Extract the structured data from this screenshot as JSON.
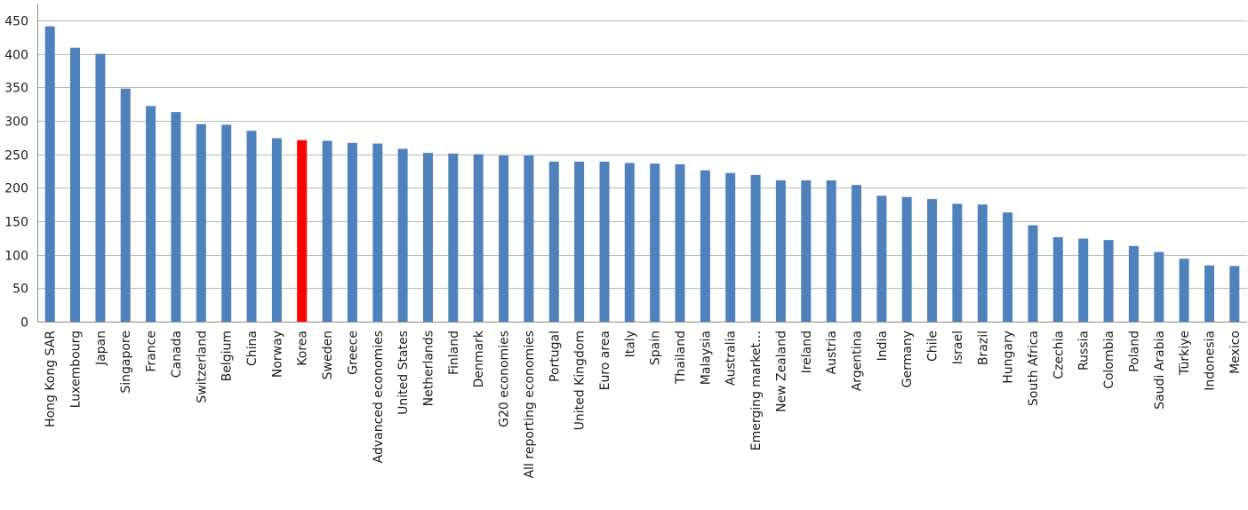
{
  "chart_data": {
    "type": "bar",
    "title": "",
    "xlabel": "",
    "ylabel": "",
    "ylim": [
      0,
      475
    ],
    "yticks": [
      0,
      50,
      100,
      150,
      200,
      250,
      300,
      350,
      400,
      450
    ],
    "yticks_text": [
      "0",
      "50",
      "100",
      "150",
      "200",
      "250",
      "300",
      "350",
      "400",
      "450"
    ],
    "grid": true,
    "legend": "none",
    "bar_color": "#4f81bd",
    "highlight_color": "#ff0000",
    "highlight_category": "Korea",
    "categories": [
      "Hong Kong SAR",
      "Luxembourg",
      "Japan",
      "Singapore",
      "France",
      "Canada",
      "Switzerland",
      "Belgium",
      "China",
      "Norway",
      "Korea",
      "Sweden",
      "Greece",
      "Advanced economies",
      "United States",
      "Netherlands",
      "Finland",
      "Denmark",
      "G20 economies",
      "All reporting economies",
      "Portugal",
      "United Kingdom",
      "Euro area",
      "Italy",
      "Spain",
      "Thailand",
      "Malaysia",
      "Australia",
      "Emerging market…",
      "New Zealand",
      "Ireland",
      "Austria",
      "Argentina",
      "India",
      "Germany",
      "Chile",
      "Israel",
      "Brazil",
      "Hungary",
      "South Africa",
      "Czechia",
      "Russia",
      "Colombia",
      "Poland",
      "Saudi Arabia",
      "Türkiye",
      "Indonesia",
      "Mexico"
    ],
    "values": [
      441,
      409,
      400,
      348,
      322,
      313,
      295,
      294,
      285,
      274,
      271,
      270,
      267,
      266,
      258,
      252,
      251,
      250,
      248,
      248,
      239,
      239,
      239,
      237,
      236,
      235,
      226,
      222,
      219,
      211,
      211,
      211,
      204,
      188,
      186,
      183,
      176,
      175,
      163,
      144,
      126,
      124,
      122,
      113,
      104,
      94,
      84,
      83
    ]
  }
}
